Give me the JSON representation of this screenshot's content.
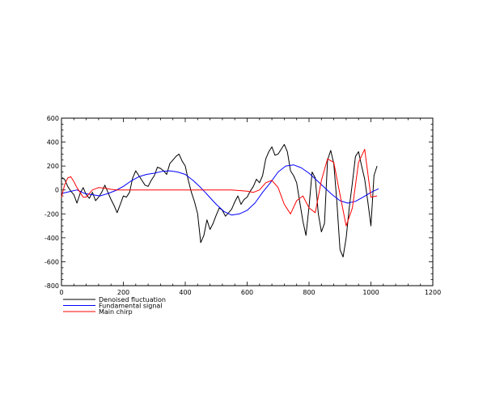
{
  "chart_data": {
    "type": "line",
    "xlim": [
      0,
      1200
    ],
    "ylim": [
      -800,
      600
    ],
    "xticks": [
      0,
      200,
      400,
      600,
      800,
      1000,
      1200
    ],
    "yticks": [
      -800,
      -600,
      -400,
      -200,
      0,
      200,
      400,
      600
    ],
    "xtick_labels": [
      "0",
      "200",
      "400",
      "600",
      "800",
      "1000",
      "1200"
    ],
    "ytick_labels": [
      "-800",
      "-600",
      "-400",
      "-200",
      "0",
      "200",
      "400",
      "600"
    ],
    "grid": false,
    "legend_position": "bottom-left",
    "series": [
      {
        "name": "Denoised fluctuation",
        "color": "#000000",
        "x": [
          0,
          10,
          20,
          30,
          40,
          50,
          60,
          70,
          80,
          90,
          100,
          110,
          120,
          130,
          140,
          150,
          160,
          170,
          180,
          190,
          200,
          210,
          220,
          230,
          240,
          250,
          260,
          270,
          280,
          290,
          300,
          310,
          320,
          330,
          340,
          350,
          360,
          370,
          380,
          390,
          400,
          410,
          420,
          430,
          440,
          450,
          460,
          470,
          480,
          490,
          500,
          510,
          520,
          530,
          540,
          550,
          560,
          570,
          580,
          590,
          600,
          610,
          620,
          630,
          640,
          650,
          660,
          670,
          680,
          690,
          700,
          710,
          720,
          730,
          740,
          750,
          760,
          770,
          780,
          790,
          800,
          810,
          820,
          830,
          840,
          850,
          860,
          870,
          880,
          890,
          900,
          910,
          920,
          930,
          940,
          950,
          960,
          970,
          980,
          990,
          1000,
          1010,
          1020
        ],
        "y": [
          100,
          90,
          30,
          -10,
          -40,
          -110,
          -30,
          20,
          -40,
          -70,
          -20,
          -90,
          -60,
          -20,
          40,
          -20,
          -80,
          -130,
          -190,
          -120,
          -50,
          -60,
          -20,
          100,
          160,
          120,
          80,
          40,
          30,
          80,
          120,
          190,
          180,
          160,
          130,
          220,
          250,
          280,
          300,
          240,
          200,
          80,
          -20,
          -100,
          -200,
          -440,
          -380,
          -250,
          -330,
          -280,
          -210,
          -150,
          -170,
          -220,
          -190,
          -160,
          -100,
          -50,
          -120,
          -80,
          -60,
          -10,
          30,
          90,
          60,
          120,
          260,
          320,
          360,
          290,
          300,
          340,
          380,
          320,
          160,
          120,
          60,
          -100,
          -260,
          -380,
          -140,
          150,
          100,
          -200,
          -350,
          -280,
          250,
          330,
          220,
          -100,
          -500,
          -560,
          -400,
          -150,
          60,
          280,
          320,
          200,
          90,
          -100,
          -300,
          120,
          200
        ]
      },
      {
        "name": "Fundamental signal",
        "color": "#0000ff",
        "x": [
          0,
          25,
          50,
          75,
          100,
          125,
          150,
          175,
          200,
          225,
          250,
          275,
          300,
          325,
          350,
          375,
          400,
          425,
          450,
          475,
          500,
          525,
          550,
          575,
          600,
          625,
          650,
          675,
          700,
          725,
          750,
          775,
          800,
          825,
          850,
          875,
          900,
          925,
          950,
          975,
          1000,
          1025
        ],
        "y": [
          -30,
          -15,
          0,
          -30,
          -40,
          -50,
          -30,
          -5,
          30,
          75,
          110,
          130,
          140,
          155,
          160,
          150,
          130,
          80,
          20,
          -50,
          -120,
          -180,
          -210,
          -200,
          -170,
          -110,
          -20,
          60,
          150,
          200,
          210,
          185,
          140,
          80,
          20,
          -40,
          -90,
          -110,
          -95,
          -60,
          -20,
          10
        ]
      },
      {
        "name": "Main chirp",
        "color": "#ff0000",
        "x": [
          0,
          10,
          20,
          30,
          40,
          50,
          60,
          70,
          80,
          90,
          100,
          120,
          140,
          160,
          180,
          200,
          250,
          300,
          350,
          400,
          450,
          500,
          550,
          600,
          620,
          640,
          660,
          680,
          700,
          720,
          740,
          760,
          780,
          800,
          820,
          840,
          860,
          880,
          900,
          920,
          940,
          960,
          980,
          1000,
          1020
        ],
        "y": [
          -60,
          40,
          100,
          110,
          70,
          20,
          -20,
          -60,
          -60,
          -30,
          0,
          20,
          15,
          5,
          0,
          0,
          0,
          0,
          0,
          0,
          0,
          0,
          0,
          -10,
          -20,
          0,
          60,
          80,
          20,
          -120,
          -200,
          -90,
          -50,
          -150,
          -190,
          80,
          260,
          230,
          -40,
          -300,
          -150,
          230,
          340,
          -60,
          -50
        ]
      }
    ]
  }
}
